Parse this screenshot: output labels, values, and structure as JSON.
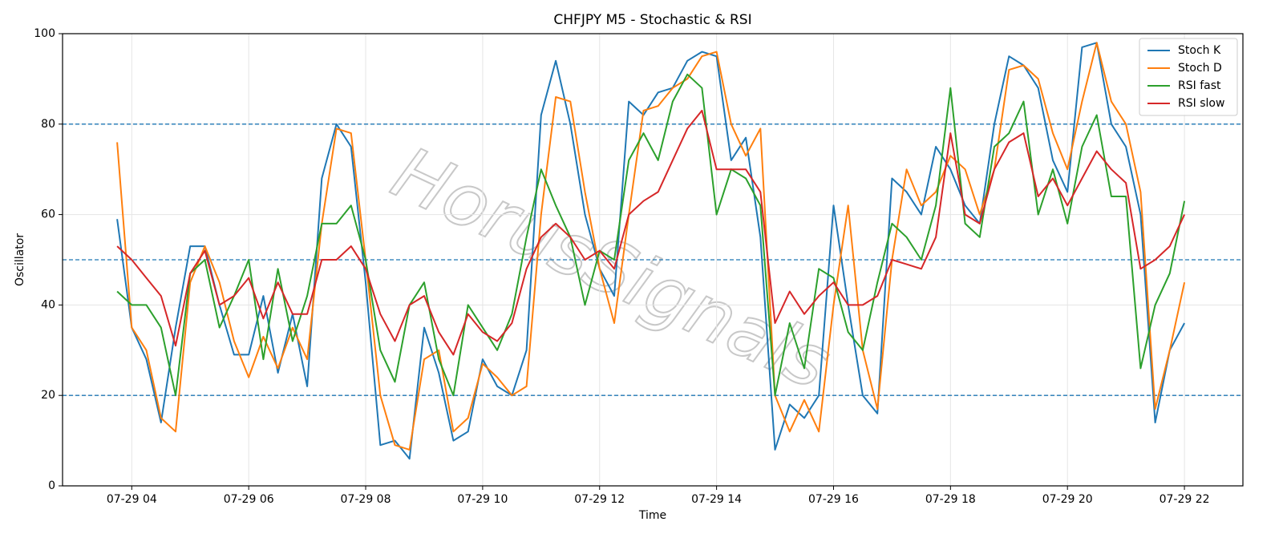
{
  "chart_data": {
    "type": "line",
    "title": "CHFJPY M5 - Stochastic & RSI",
    "xlabel": "Time",
    "ylabel": "Oscillator",
    "watermark": "HorusSignals",
    "x": [
      "07-29 03:45",
      "07-29 04:00",
      "07-29 04:15",
      "07-29 04:30",
      "07-29 04:45",
      "07-29 05:00",
      "07-29 05:15",
      "07-29 05:30",
      "07-29 05:45",
      "07-29 06:00",
      "07-29 06:15",
      "07-29 06:30",
      "07-29 06:45",
      "07-29 07:00",
      "07-29 07:15",
      "07-29 07:30",
      "07-29 07:45",
      "07-29 08:00",
      "07-29 08:15",
      "07-29 08:30",
      "07-29 08:45",
      "07-29 09:00",
      "07-29 09:15",
      "07-29 09:30",
      "07-29 09:45",
      "07-29 10:00",
      "07-29 10:15",
      "07-29 10:30",
      "07-29 10:45",
      "07-29 11:00",
      "07-29 11:15",
      "07-29 11:30",
      "07-29 11:45",
      "07-29 12:00",
      "07-29 12:15",
      "07-29 12:30",
      "07-29 12:45",
      "07-29 13:00",
      "07-29 13:15",
      "07-29 13:30",
      "07-29 13:45",
      "07-29 14:00",
      "07-29 14:15",
      "07-29 14:30",
      "07-29 14:45",
      "07-29 15:00",
      "07-29 15:15",
      "07-29 15:30",
      "07-29 15:45",
      "07-29 16:00",
      "07-29 16:15",
      "07-29 16:30",
      "07-29 16:45",
      "07-29 17:00",
      "07-29 17:15",
      "07-29 17:30",
      "07-29 17:45",
      "07-29 18:00",
      "07-29 18:15",
      "07-29 18:30",
      "07-29 18:45",
      "07-29 19:00",
      "07-29 19:15",
      "07-29 19:30",
      "07-29 19:45",
      "07-29 20:00",
      "07-29 20:15",
      "07-29 20:30",
      "07-29 20:45",
      "07-29 21:00",
      "07-29 21:15",
      "07-29 21:30",
      "07-29 21:45",
      "07-29 22:00"
    ],
    "series": [
      {
        "name": "Stoch K",
        "color": "#1f77b4",
        "values": [
          59,
          35,
          28,
          14,
          35,
          53,
          53,
          40,
          29,
          29,
          42,
          25,
          38,
          22,
          68,
          80,
          75,
          45,
          9,
          10,
          6,
          35,
          25,
          10,
          12,
          28,
          22,
          20,
          30,
          82,
          94,
          80,
          60,
          48,
          42,
          85,
          82,
          87,
          88,
          94,
          96,
          95,
          72,
          77,
          55,
          8,
          18,
          15,
          20,
          62,
          40,
          20,
          16,
          68,
          65,
          60,
          75,
          70,
          62,
          58,
          80,
          95,
          93,
          88,
          72,
          65,
          97,
          98,
          80,
          75,
          60,
          14,
          30,
          36
        ]
      },
      {
        "name": "Stoch D",
        "color": "#ff7f0e",
        "values": [
          76,
          35,
          30,
          15,
          12,
          45,
          53,
          45,
          32,
          24,
          33,
          26,
          35,
          28,
          58,
          79,
          78,
          50,
          20,
          9,
          8,
          28,
          30,
          12,
          15,
          27,
          24,
          20,
          22,
          60,
          86,
          85,
          65,
          48,
          36,
          60,
          83,
          84,
          88,
          90,
          95,
          96,
          80,
          73,
          79,
          20,
          12,
          19,
          12,
          40,
          62,
          30,
          17,
          50,
          70,
          62,
          65,
          73,
          70,
          60,
          70,
          92,
          93,
          90,
          78,
          70,
          85,
          98,
          85,
          80,
          65,
          17,
          30,
          45
        ]
      },
      {
        "name": "RSI fast",
        "color": "#2ca02c",
        "values": [
          43,
          40,
          40,
          35,
          20,
          47,
          50,
          35,
          42,
          50,
          28,
          48,
          32,
          42,
          58,
          58,
          62,
          50,
          30,
          23,
          40,
          45,
          28,
          20,
          40,
          35,
          30,
          38,
          55,
          70,
          62,
          55,
          40,
          52,
          50,
          72,
          78,
          72,
          85,
          91,
          88,
          60,
          70,
          68,
          62,
          20,
          36,
          26,
          48,
          46,
          34,
          30,
          45,
          58,
          55,
          50,
          62,
          88,
          58,
          55,
          75,
          78,
          85,
          60,
          70,
          58,
          75,
          82,
          64,
          64,
          26,
          40,
          47,
          63
        ]
      },
      {
        "name": "RSI slow",
        "color": "#d62728",
        "values": [
          53,
          50,
          46,
          42,
          31,
          47,
          52,
          40,
          42,
          46,
          37,
          45,
          38,
          38,
          50,
          50,
          53,
          48,
          38,
          32,
          40,
          42,
          34,
          29,
          38,
          34,
          32,
          36,
          48,
          55,
          58,
          55,
          50,
          52,
          48,
          60,
          63,
          65,
          72,
          79,
          83,
          70,
          70,
          70,
          65,
          36,
          43,
          38,
          42,
          45,
          40,
          40,
          42,
          50,
          49,
          48,
          55,
          78,
          60,
          58,
          70,
          76,
          78,
          64,
          68,
          62,
          68,
          74,
          70,
          67,
          48,
          50,
          53,
          60
        ]
      }
    ],
    "hlines": [
      20,
      50,
      80
    ],
    "hline_color": "#1f77b4",
    "xlim": [
      "07-29 02:49",
      "07-29 23:00"
    ],
    "xticks": [
      {
        "value": "07-29 04:00",
        "label": "07-29 04"
      },
      {
        "value": "07-29 06:00",
        "label": "07-29 06"
      },
      {
        "value": "07-29 08:00",
        "label": "07-29 08"
      },
      {
        "value": "07-29 10:00",
        "label": "07-29 10"
      },
      {
        "value": "07-29 12:00",
        "label": "07-29 12"
      },
      {
        "value": "07-29 14:00",
        "label": "07-29 14"
      },
      {
        "value": "07-29 16:00",
        "label": "07-29 16"
      },
      {
        "value": "07-29 18:00",
        "label": "07-29 18"
      },
      {
        "value": "07-29 20:00",
        "label": "07-29 20"
      },
      {
        "value": "07-29 22:00",
        "label": "07-29 22"
      }
    ],
    "ylim": [
      0,
      100
    ],
    "yticks": [
      0,
      20,
      40,
      60,
      80,
      100
    ],
    "grid": true,
    "legend": "upper right"
  }
}
